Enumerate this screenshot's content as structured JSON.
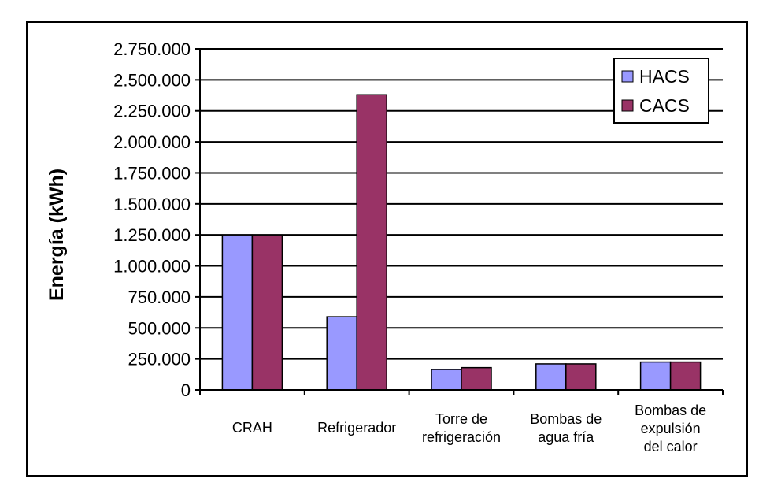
{
  "chart_data": {
    "type": "bar",
    "title": "",
    "xlabel": "",
    "ylabel": "Energía (kWh)",
    "ylim": [
      0,
      2750000
    ],
    "yticks": [
      0,
      250000,
      500000,
      750000,
      1000000,
      1250000,
      1500000,
      1750000,
      2000000,
      2250000,
      2500000,
      2750000
    ],
    "ytick_labels": [
      "0",
      "250.000",
      "500.000",
      "750.000",
      "1.000.000",
      "1.250.000",
      "1.500.000",
      "1.750.000",
      "2.000.000",
      "2.250.000",
      "2.500.000",
      "2.750.000"
    ],
    "grid": true,
    "legend_position": "top-right",
    "categories": [
      [
        "CRAH"
      ],
      [
        "Refrigerador"
      ],
      [
        "Torre de",
        "refrigeración"
      ],
      [
        "Bombas de",
        "agua fría"
      ],
      [
        "Bombas de",
        "expulsión",
        "del calor"
      ]
    ],
    "series": [
      {
        "name": "HACS",
        "color": "#9999ff",
        "values": [
          1250000,
          590000,
          165000,
          210000,
          225000
        ]
      },
      {
        "name": "CACS",
        "color": "#993366",
        "values": [
          1250000,
          2380000,
          180000,
          210000,
          225000
        ]
      }
    ]
  }
}
